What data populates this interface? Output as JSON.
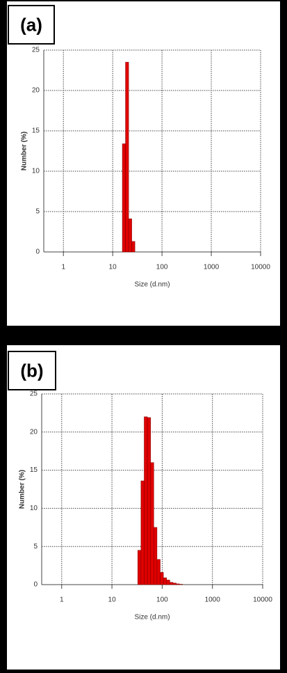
{
  "chart_data": [
    {
      "type": "histogram",
      "title": "(a)",
      "x_label": "Size (d.nm)",
      "y_label": "Number (%)",
      "bins": [
        15.69,
        18.17,
        21.04,
        24.36,
        28.21
      ],
      "values": [
        13.4,
        23.5,
        4.1,
        1.3
      ],
      "color": "#e00000",
      "xscale": "log",
      "xlim": [
        0.4,
        10000
      ],
      "xticks": [
        1,
        10,
        100,
        1000,
        10000
      ],
      "ylim": [
        0,
        25
      ],
      "yticks": [
        0,
        5,
        10,
        15,
        20,
        25
      ],
      "grid": true
    },
    {
      "type": "histogram",
      "title": "(b)",
      "x_label": "Size (d.nm)",
      "y_label": "Number (%)",
      "bins": [
        32.67,
        37.84,
        43.82,
        50.75,
        58.77,
        68.06,
        78.82,
        91.28,
        105.7,
        122.4,
        141.8,
        164.2,
        190.1,
        220.2,
        255.0
      ],
      "values": [
        4.5,
        13.6,
        22.0,
        21.9,
        16.0,
        7.5,
        3.3,
        1.6,
        0.9,
        0.6,
        0.3,
        0.2,
        0.1,
        0.05
      ],
      "color": "#e00000",
      "xscale": "log",
      "xlim": [
        0.4,
        10000
      ],
      "xticks": [
        1,
        10,
        100,
        1000,
        10000
      ],
      "ylim": [
        0,
        25
      ],
      "yticks": [
        0,
        5,
        10,
        15,
        20,
        25
      ],
      "grid": true
    }
  ]
}
